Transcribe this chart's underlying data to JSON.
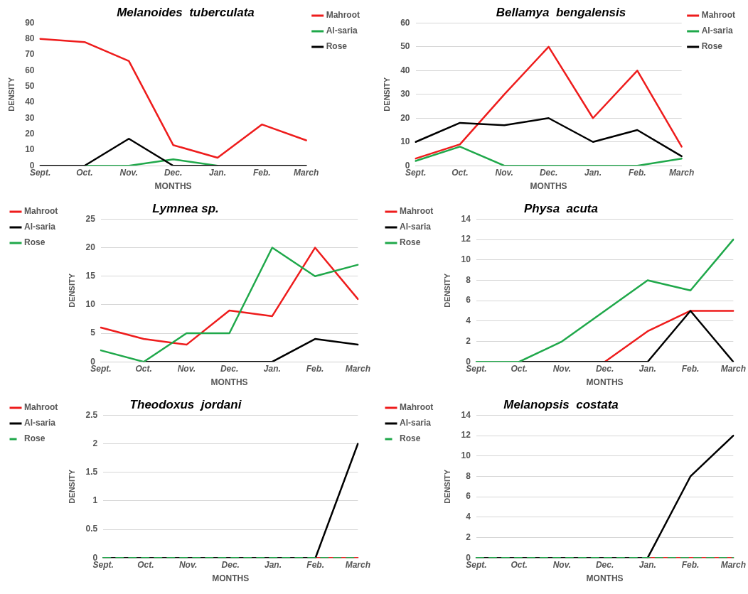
{
  "chart_data": [
    {
      "type": "line",
      "title": "Melanoides  tuberculata",
      "xlabel": "MONTHS",
      "ylabel": "DENSITY",
      "categories": [
        "Sept.",
        "Oct.",
        "Nov.",
        "Dec.",
        "Jan.",
        "Feb.",
        "March"
      ],
      "ylim": [
        0,
        90
      ],
      "yticks": [
        0,
        10,
        20,
        30,
        40,
        50,
        60,
        70,
        80,
        90
      ],
      "grid": false,
      "legend": "top right",
      "marker": "none",
      "series": [
        {
          "name": "Mahroot",
          "color": "#ee1c1c",
          "values": [
            80,
            78,
            66,
            13,
            5,
            26,
            16
          ]
        },
        {
          "name": "Al-saria",
          "color": "#1fa84a",
          "values": [
            null,
            0,
            0,
            4,
            0,
            null,
            null
          ]
        },
        {
          "name": "Rose",
          "color": "#000000",
          "values": [
            0,
            0,
            17,
            0,
            0,
            0,
            0
          ]
        }
      ]
    },
    {
      "type": "line",
      "title": "Bellamya  bengalensis",
      "xlabel": "MONTHS",
      "ylabel": "DENSITY",
      "categories": [
        "Sept.",
        "Oct.",
        "Nov.",
        "Dec.",
        "Jan.",
        "Feb.",
        "March"
      ],
      "ylim": [
        0,
        60
      ],
      "yticks": [
        0,
        10,
        20,
        30,
        40,
        50,
        60
      ],
      "grid": "y",
      "legend": "top right",
      "marker": "none",
      "series": [
        {
          "name": "Mahroot",
          "color": "#ee1c1c",
          "values": [
            3,
            9,
            30,
            50,
            20,
            40,
            8
          ]
        },
        {
          "name": "Al-saria",
          "color": "#1fa84a",
          "values": [
            2,
            8,
            0,
            0,
            0,
            0,
            3
          ]
        },
        {
          "name": "Rose",
          "color": "#000000",
          "values": [
            10,
            18,
            17,
            20,
            10,
            15,
            4
          ]
        }
      ]
    },
    {
      "type": "line",
      "title": "Lymnea sp.",
      "xlabel": "MONTHS",
      "ylabel": "DENSITY",
      "categories": [
        "Sept.",
        "Oct.",
        "Nov.",
        "Dec.",
        "Jan.",
        "Feb.",
        "March"
      ],
      "ylim": [
        0,
        25
      ],
      "yticks": [
        0,
        5,
        10,
        15,
        20,
        25
      ],
      "grid": "y",
      "legend": "top left",
      "marker": "none",
      "series": [
        {
          "name": "Mahroot",
          "color": "#ee1c1c",
          "values": [
            6,
            4,
            3,
            9,
            8,
            20,
            11
          ]
        },
        {
          "name": "Al-saria",
          "color": "#000000",
          "values": [
            null,
            0,
            0,
            0,
            0,
            4,
            3
          ]
        },
        {
          "name": "Rose",
          "color": "#1fa84a",
          "values": [
            2,
            0,
            5,
            5,
            20,
            15,
            17
          ]
        }
      ]
    },
    {
      "type": "line",
      "title": "Physa  acuta",
      "xlabel": "MONTHS",
      "ylabel": "DENSITY",
      "categories": [
        "Sept.",
        "Oct.",
        "Nov.",
        "Dec.",
        "Jan.",
        "Feb.",
        "March"
      ],
      "ylim": [
        0,
        14
      ],
      "yticks": [
        0,
        2,
        4,
        6,
        8,
        10,
        12,
        14
      ],
      "grid": "y",
      "legend": "top left",
      "marker": "none",
      "series": [
        {
          "name": "Mahroot",
          "color": "#ee1c1c",
          "values": [
            null,
            null,
            null,
            0,
            3,
            5,
            5
          ]
        },
        {
          "name": "Al-saria",
          "color": "#000000",
          "values": [
            null,
            0,
            0,
            0,
            0,
            5,
            0
          ]
        },
        {
          "name": "Rose",
          "color": "#1fa84a",
          "values": [
            0,
            0,
            2,
            5,
            8,
            7,
            12
          ]
        }
      ]
    },
    {
      "type": "line",
      "title": "Theodoxus  jordani",
      "xlabel": "MONTHS",
      "ylabel": "DENSITY",
      "categories": [
        "Sept.",
        "Oct.",
        "Nov.",
        "Dec.",
        "Jan.",
        "Feb.",
        "March"
      ],
      "ylim": [
        0,
        2.5
      ],
      "yticks": [
        0,
        0.5,
        1,
        1.5,
        2,
        2.5
      ],
      "grid": "y",
      "legend": "top left",
      "marker": "none",
      "series": [
        {
          "name": "Mahroot",
          "color": "#ee1c1c",
          "values": [
            null,
            null,
            null,
            null,
            null,
            0,
            0
          ]
        },
        {
          "name": "Al-saria",
          "color": "#000000",
          "values": [
            0,
            0,
            0,
            0,
            0,
            0,
            2
          ]
        },
        {
          "name": "Rose",
          "color": "#1fa84a",
          "line_style": "dashed",
          "values": [
            0,
            0,
            0,
            0,
            0,
            0,
            0
          ]
        }
      ]
    },
    {
      "type": "line",
      "title": "Melanopsis  costata",
      "xlabel": "MONTHS",
      "ylabel": "DENSITY",
      "categories": [
        "Sept.",
        "Oct.",
        "Nov.",
        "Dec.",
        "Jan.",
        "Feb.",
        "March"
      ],
      "ylim": [
        0,
        14
      ],
      "yticks": [
        0,
        2,
        4,
        6,
        8,
        10,
        12,
        14
      ],
      "grid": "y",
      "legend": "top left",
      "marker": "none",
      "series": [
        {
          "name": "Mahroot",
          "color": "#ee1c1c",
          "values": [
            null,
            null,
            null,
            null,
            0,
            0,
            0
          ]
        },
        {
          "name": "Al-saria",
          "color": "#000000",
          "values": [
            0,
            0,
            0,
            0,
            0,
            8,
            12
          ]
        },
        {
          "name": "Rose",
          "color": "#1fa84a",
          "line_style": "dashed",
          "values": [
            0,
            0,
            0,
            0,
            0,
            0,
            0
          ]
        }
      ]
    }
  ]
}
